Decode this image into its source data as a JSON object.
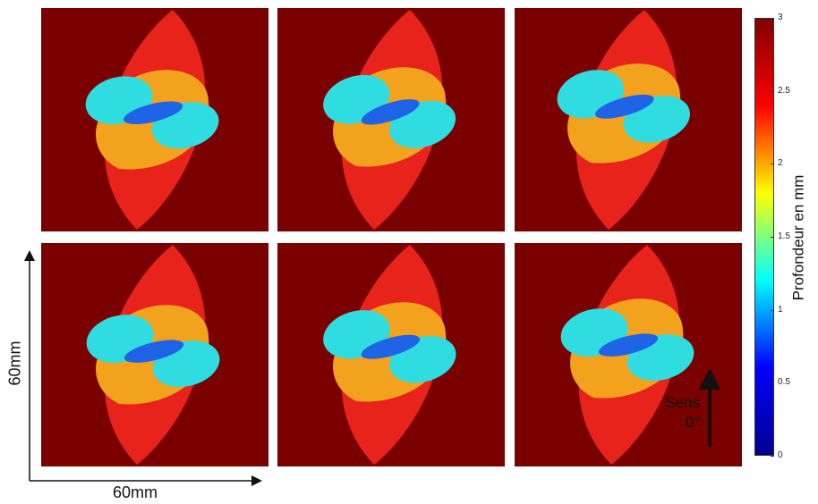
{
  "colors": {
    "background": "#7a0000",
    "ridge": "#e8231c",
    "orange": "#f2a21d",
    "cyan": "#2fdde0",
    "blue": "#1f63e6",
    "colorbar_stops": [
      "#00008f",
      "#0000ff",
      "#00ffff",
      "#ffff00",
      "#ff0000",
      "#800000"
    ]
  },
  "chart_data": {
    "type": "heatmap",
    "panels": 6,
    "layout": "2 rows x 3 columns",
    "colorbar": {
      "label": "Profondeur en mm",
      "range": [
        0,
        3
      ],
      "ticks": [
        "3",
        "2.5",
        "2",
        "1.5",
        "1",
        "0.5",
        "0"
      ]
    },
    "x_scale_label": "60mm",
    "y_scale_label": "60mm",
    "direction_label": [
      "Sens",
      "0°"
    ]
  }
}
